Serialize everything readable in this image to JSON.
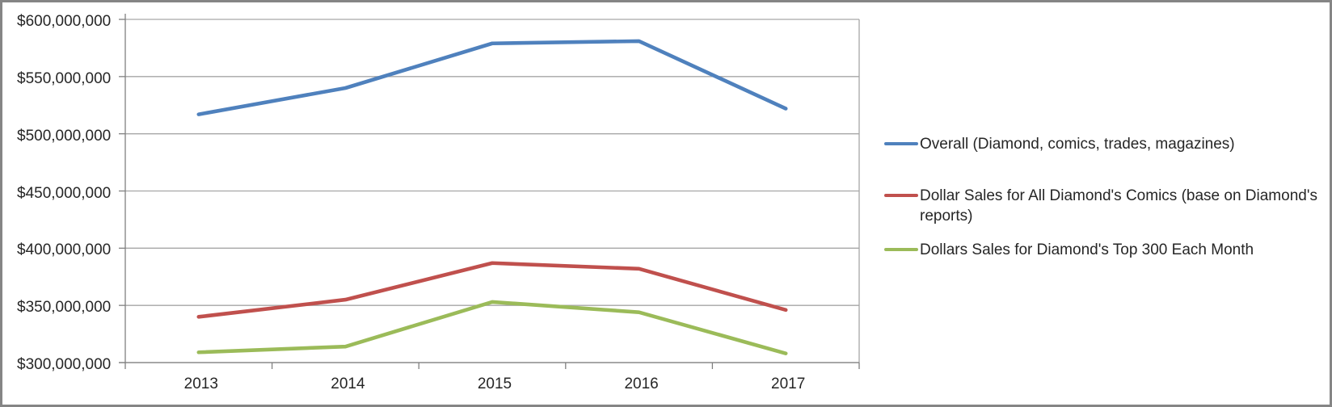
{
  "chart_data": {
    "type": "line",
    "title": "",
    "x_categories": [
      "2013",
      "2014",
      "2015",
      "2016",
      "2017"
    ],
    "y_axis": {
      "tick_labels": [
        "$600,000,000",
        "$550,000,000",
        "$500,000,000",
        "$450,000,000",
        "$400,000,000",
        "$350,000,000",
        "$300,000,000"
      ],
      "max_usd_millions": 600,
      "min_usd_millions": 300,
      "tick_step_usd_millions": 50,
      "unit": "USD"
    },
    "series": [
      {
        "name": "Overall (Diamond, comics, trades, magazines)",
        "color": "#4F81BD",
        "values_usd_millions": [
          517,
          540,
          579,
          581,
          522
        ]
      },
      {
        "name": "Dollar Sales for All Diamond's Comics (base on Diamond's reports)",
        "color": "#C0504D",
        "values_usd_millions": [
          340,
          355,
          387,
          382,
          346
        ]
      },
      {
        "name": "Dollars Sales for Diamond's Top 300 Each Month",
        "color": "#9BBB59",
        "values_usd_millions": [
          309,
          314,
          353,
          344,
          308
        ]
      }
    ],
    "legend_position": "right",
    "grid": true
  },
  "style": {
    "grid_color": "#A6A6A6",
    "axis_color": "#808080",
    "text_color": "#262626",
    "frame_border_color": "#858585",
    "background": "#FFFFFF"
  }
}
